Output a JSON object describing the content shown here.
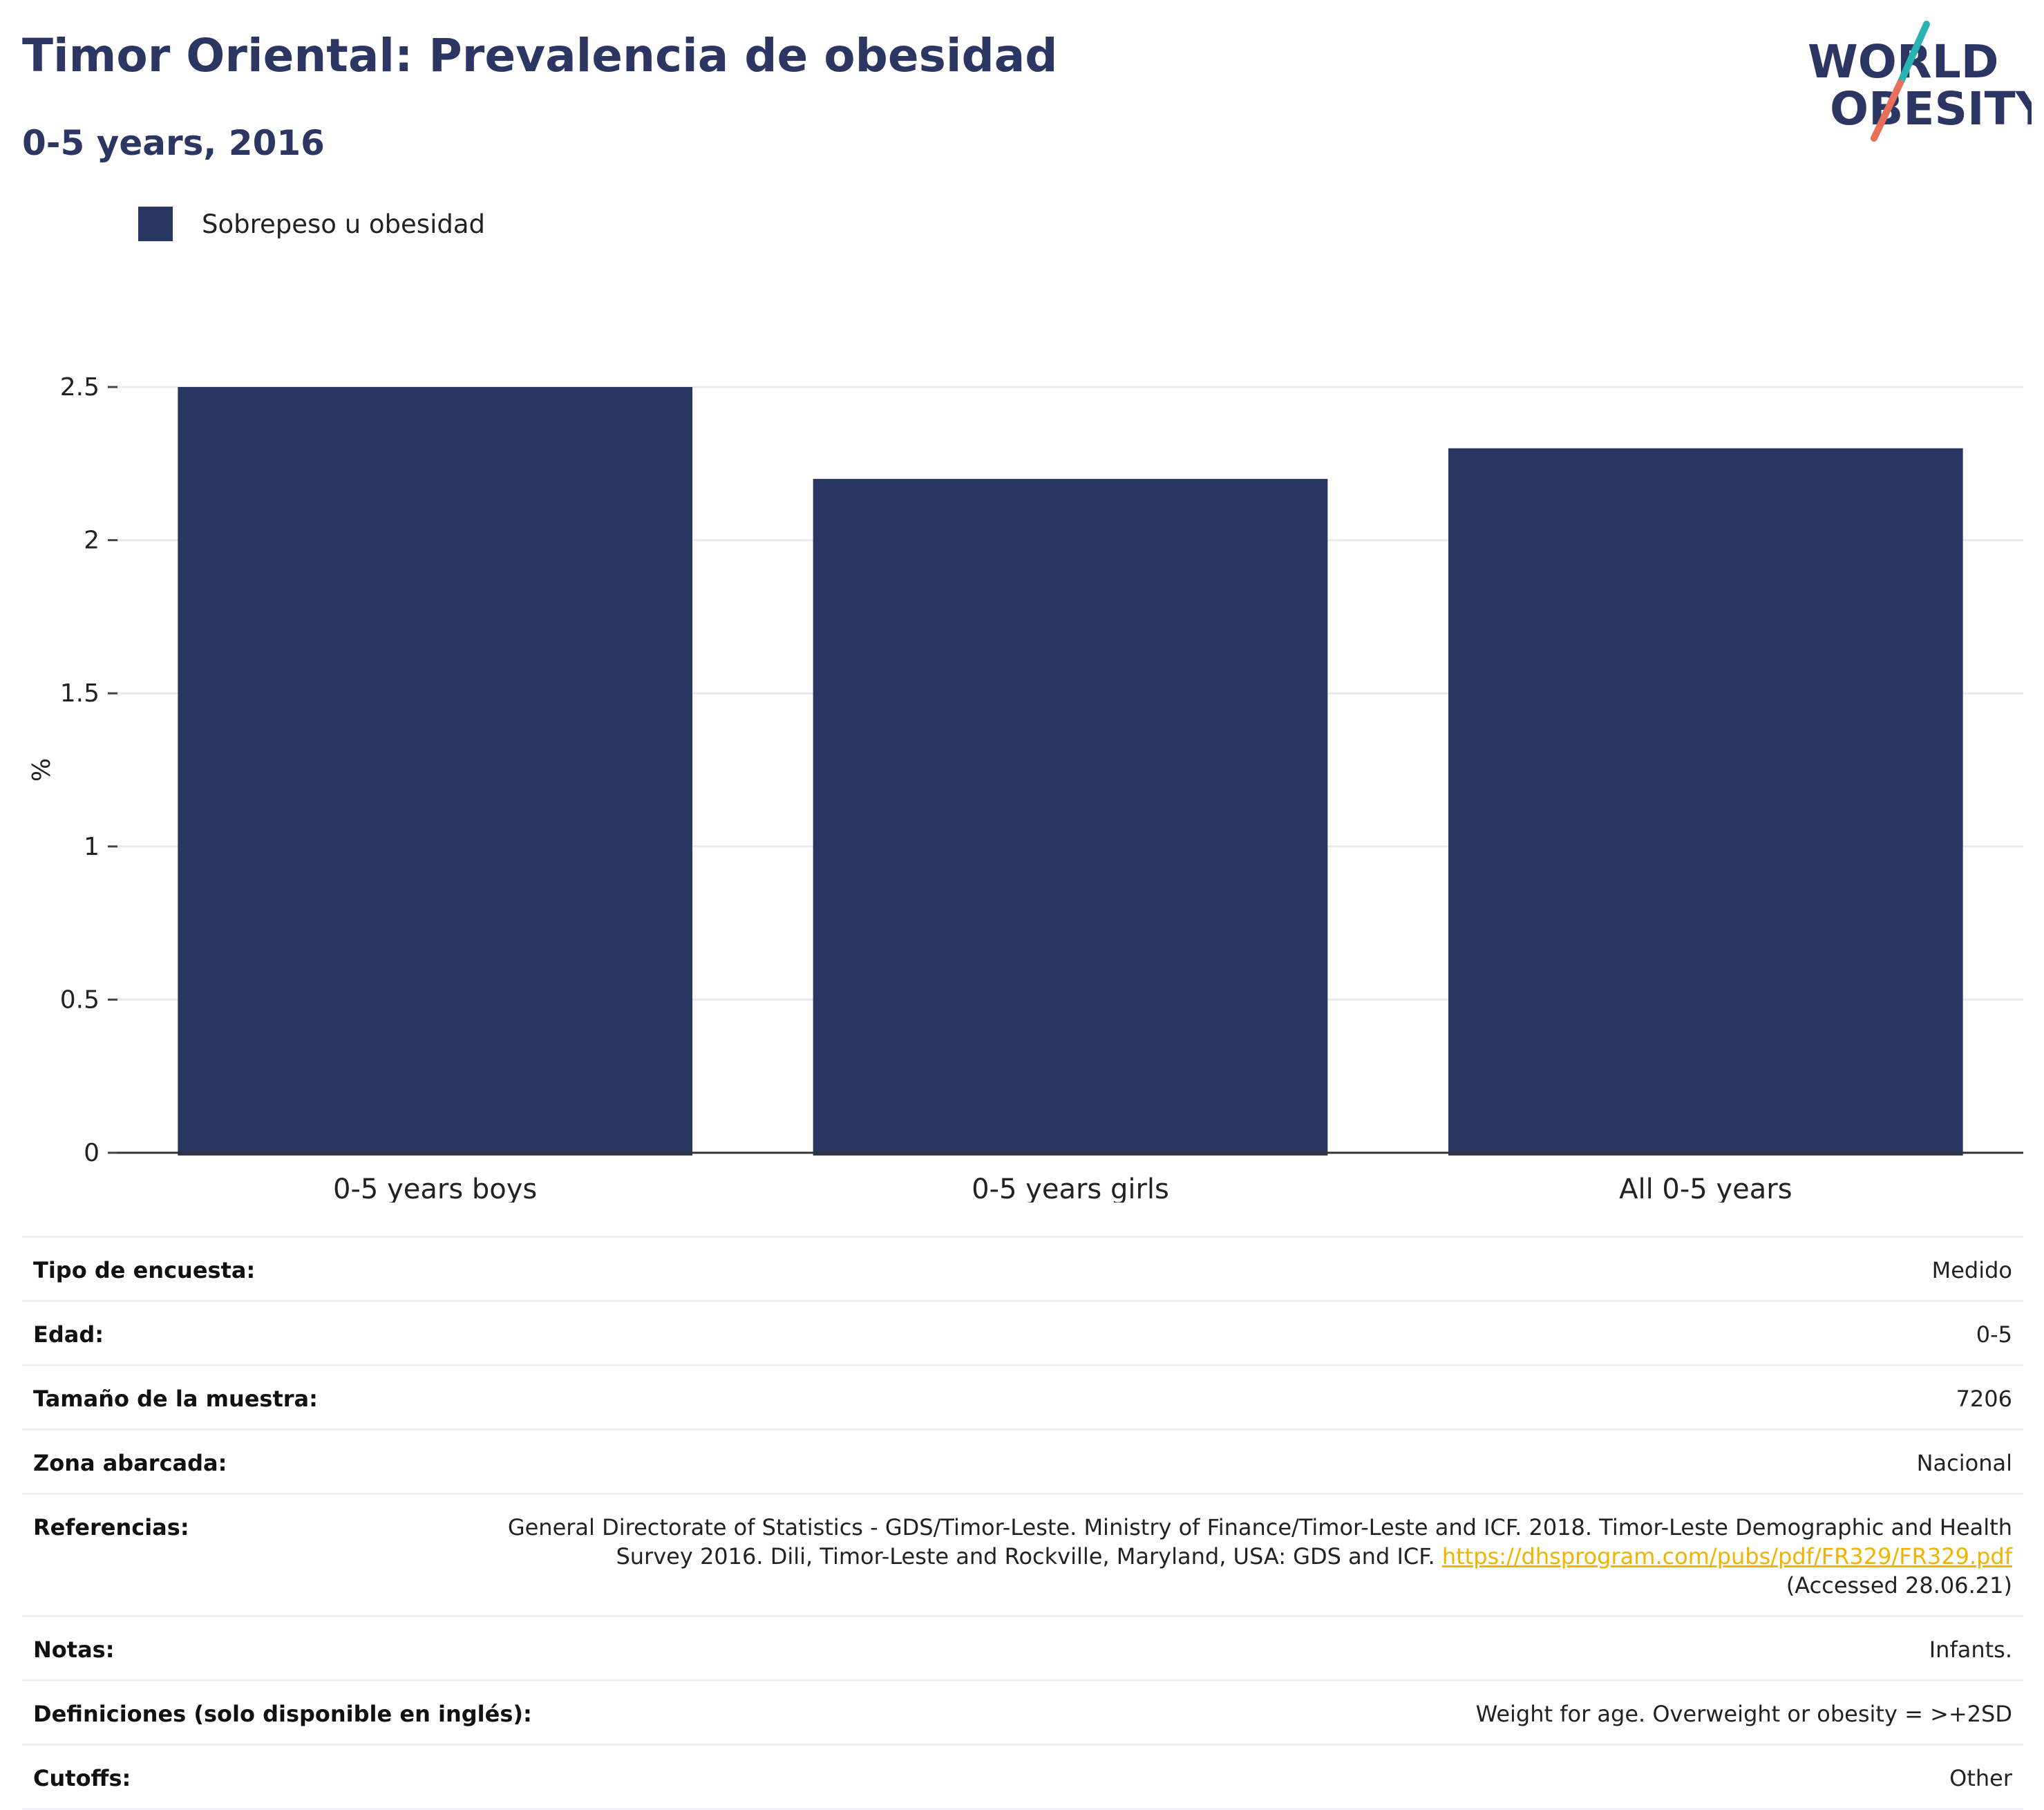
{
  "title": "Timor Oriental: Prevalencia de obesidad",
  "subtitle": "0-5 years, 2016",
  "logo": {
    "line1": "WORLD",
    "line2": "OBESITY",
    "accent_teal": "#2bb3b1",
    "accent_coral": "#e8705a",
    "text_color": "#2c3663"
  },
  "legend": [
    {
      "label": "Sobrepeso u obesidad",
      "color": "#2a3662"
    }
  ],
  "chart_data": {
    "type": "bar",
    "categories": [
      "0-5 years boys",
      "0-5 years girls",
      "All 0-5 years"
    ],
    "series": [
      {
        "name": "Sobrepeso u obesidad",
        "values": [
          2.5,
          2.2,
          2.3
        ],
        "color": "#2a3662"
      }
    ],
    "ylabel": "%",
    "yticks": [
      "0",
      "0.5",
      "1",
      "1.5",
      "2",
      "2.5"
    ],
    "ylim": [
      0,
      2.5
    ],
    "grid": true,
    "legend_position": "top-left"
  },
  "metadata": [
    {
      "key": "Tipo de encuesta:",
      "value": "Medido"
    },
    {
      "key": "Edad:",
      "value": "0-5"
    },
    {
      "key": "Tamaño de la muestra:",
      "value": "7206"
    },
    {
      "key": "Zona abarcada:",
      "value": "Nacional"
    },
    {
      "key": "Referencias:",
      "value": "General Directorate of Statistics - GDS/Timor-Leste. Ministry of Finance/Timor-Leste and ICF. 2018. Timor-Leste Demographic and Health Survey 2016. Dili, Timor-Leste and Rockville, Maryland, USA: GDS and ICF.",
      "link": "https://dhsprogram.com/pubs/pdf/FR329/FR329.pdf",
      "suffix": "(Accessed 28.06.21)"
    },
    {
      "key": "Notas:",
      "value": "Infants."
    },
    {
      "key": "Definiciones (solo disponible en inglés):",
      "value": "Weight for age. Overweight or obesity = >+2SD"
    },
    {
      "key": "Cutoffs:",
      "value": "Other"
    }
  ]
}
